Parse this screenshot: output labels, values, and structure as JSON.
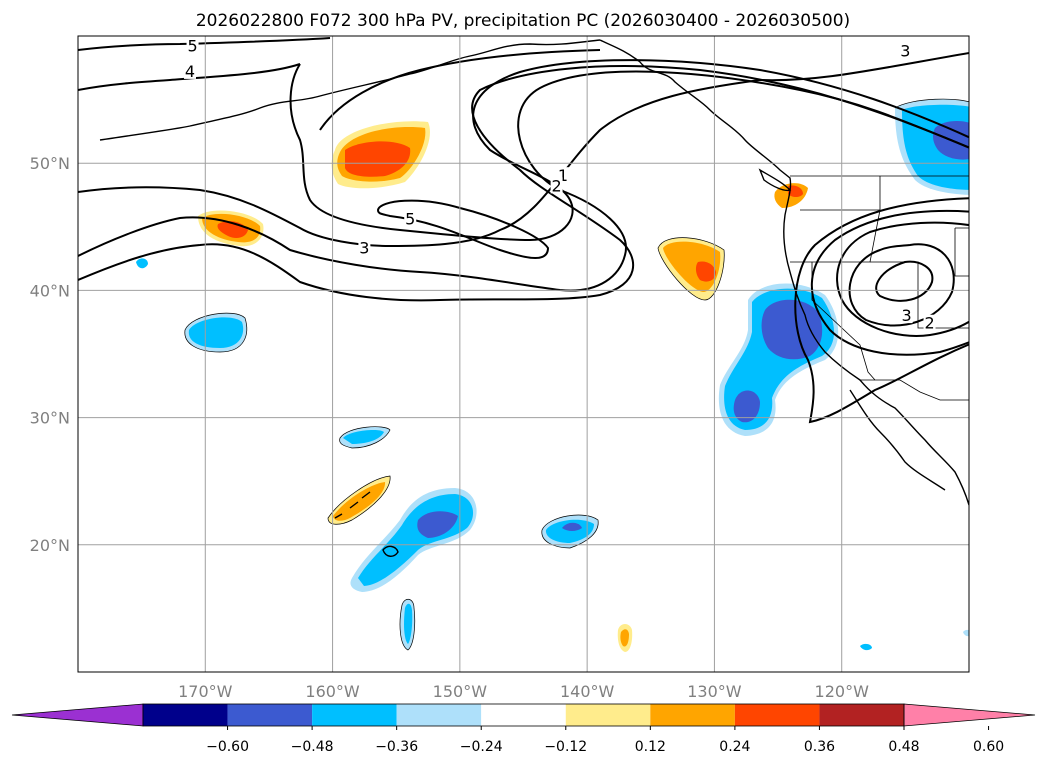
{
  "title": "2026022800 F072 300 hPa PV, precipitation PC (2026030400 - 2026030500)",
  "map": {
    "lon_ticks": [
      {
        "value": -170,
        "label": "170°W"
      },
      {
        "value": -160,
        "label": "160°W"
      },
      {
        "value": -150,
        "label": "150°W"
      },
      {
        "value": -140,
        "label": "140°W"
      },
      {
        "value": -130,
        "label": "130°W"
      },
      {
        "value": -120,
        "label": "120°W"
      }
    ],
    "lat_ticks": [
      {
        "value": 20,
        "label": "20°N"
      },
      {
        "value": 30,
        "label": "30°N"
      },
      {
        "value": 40,
        "label": "40°N"
      },
      {
        "value": 50,
        "label": "50°N"
      }
    ],
    "extent": {
      "lon_min": -180,
      "lon_max": -110,
      "lat_min": 10,
      "lat_max": 60
    },
    "contour_labels": [
      {
        "text": "5",
        "lon": -171,
        "lat": 59.1
      },
      {
        "text": "4",
        "lon": -171.2,
        "lat": 57.1
      },
      {
        "text": "3",
        "lon": -115,
        "lat": 58.7
      },
      {
        "text": "1",
        "lon": -141.9,
        "lat": 48.9
      },
      {
        "text": "2",
        "lon": -142.4,
        "lat": 48.1
      },
      {
        "text": "5",
        "lon": -153.9,
        "lat": 45.5
      },
      {
        "text": "3",
        "lon": -157.5,
        "lat": 43.2
      },
      {
        "text": "3",
        "lon": -114.9,
        "lat": 37.9
      },
      {
        "text": "2",
        "lon": -113.1,
        "lat": 37.3
      }
    ]
  },
  "colorbar": {
    "labels": [
      "−0.60",
      "−0.48",
      "−0.36",
      "−0.24",
      "−0.12",
      "0.12",
      "0.24",
      "0.36",
      "0.48",
      "0.60"
    ],
    "colors": [
      "#9b30d2",
      "#00008b",
      "#3c5ad0",
      "#00bfff",
      "#aee0fa",
      "#ffffff",
      "#ffec8c",
      "#ffa500",
      "#ff4500",
      "#b22222",
      "#ff80a8"
    ]
  }
}
